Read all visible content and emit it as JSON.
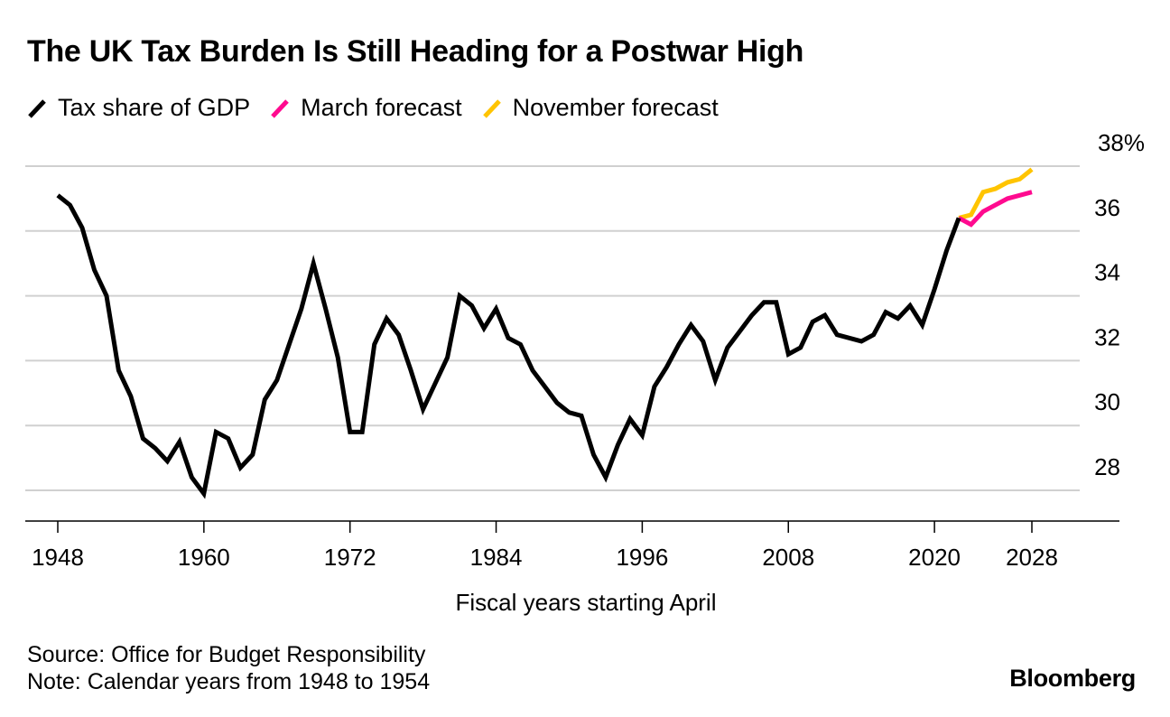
{
  "chart_data": {
    "type": "line",
    "title": "The UK Tax Burden Is Still Heading for a Postwar High",
    "xlabel": "Fiscal years starting April",
    "ylabel": "",
    "y_unit": "%",
    "xlim": [
      1947,
      2035
    ],
    "ylim": [
      27,
      38
    ],
    "x_ticks": [
      1948,
      1960,
      1972,
      1984,
      1996,
      2008,
      2020,
      2028
    ],
    "y_ticks": [
      28,
      30,
      32,
      34,
      36,
      38
    ],
    "grid": "horizontal",
    "legend_position": "top-left",
    "series": [
      {
        "name": "Tax share of GDP",
        "color": "#000000",
        "x": [
          1948,
          1949,
          1950,
          1951,
          1952,
          1953,
          1954,
          1955,
          1956,
          1957,
          1958,
          1959,
          1960,
          1961,
          1962,
          1963,
          1964,
          1965,
          1966,
          1967,
          1968,
          1969,
          1970,
          1971,
          1972,
          1973,
          1974,
          1975,
          1976,
          1977,
          1978,
          1979,
          1980,
          1981,
          1982,
          1983,
          1984,
          1985,
          1986,
          1987,
          1988,
          1989,
          1990,
          1991,
          1992,
          1993,
          1994,
          1995,
          1996,
          1997,
          1998,
          1999,
          2000,
          2001,
          2002,
          2003,
          2004,
          2005,
          2006,
          2007,
          2008,
          2009,
          2010,
          2011,
          2012,
          2013,
          2014,
          2015,
          2016,
          2017,
          2018,
          2019,
          2020,
          2021,
          2022
        ],
        "values": [
          37.1,
          36.8,
          36.1,
          34.8,
          34.0,
          31.7,
          30.9,
          29.6,
          29.3,
          28.9,
          29.5,
          28.4,
          27.9,
          29.8,
          29.6,
          28.7,
          29.1,
          30.8,
          31.4,
          32.5,
          33.6,
          35.0,
          33.6,
          32.1,
          29.8,
          29.8,
          32.5,
          33.3,
          32.8,
          31.7,
          30.5,
          31.3,
          32.1,
          34.0,
          33.7,
          33.0,
          33.6,
          32.7,
          32.5,
          31.7,
          31.2,
          30.7,
          30.4,
          30.3,
          29.1,
          28.4,
          29.4,
          30.2,
          29.7,
          31.2,
          31.8,
          32.5,
          33.1,
          32.6,
          31.4,
          32.4,
          32.9,
          33.4,
          33.8,
          33.8,
          32.2,
          32.4,
          33.2,
          33.4,
          32.8,
          32.7,
          32.6,
          32.8,
          33.5,
          33.3,
          33.7,
          33.1,
          34.2,
          35.4,
          36.4
        ]
      },
      {
        "name": "March forecast",
        "color": "#ff0a8f",
        "x": [
          2022,
          2023,
          2024,
          2025,
          2026,
          2027,
          2028
        ],
        "values": [
          36.4,
          36.2,
          36.6,
          36.8,
          37.0,
          37.1,
          37.2
        ]
      },
      {
        "name": "November forecast",
        "color": "#ffc400",
        "x": [
          2022,
          2023,
          2024,
          2025,
          2026,
          2027,
          2028
        ],
        "values": [
          36.4,
          36.5,
          37.2,
          37.3,
          37.5,
          37.6,
          37.9
        ]
      }
    ]
  },
  "legend": [
    {
      "label": "Tax share of GDP",
      "color": "#000000"
    },
    {
      "label": "March forecast",
      "color": "#ff0a8f"
    },
    {
      "label": "November forecast",
      "color": "#ffc400"
    }
  ],
  "y_tick_labels": [
    "28",
    "30",
    "32",
    "34",
    "36",
    "38%"
  ],
  "footer": {
    "source": "Source: Office for Budget Responsibility",
    "note": "Note: Calendar years from 1948 to 1954"
  },
  "brand": "Bloomberg"
}
